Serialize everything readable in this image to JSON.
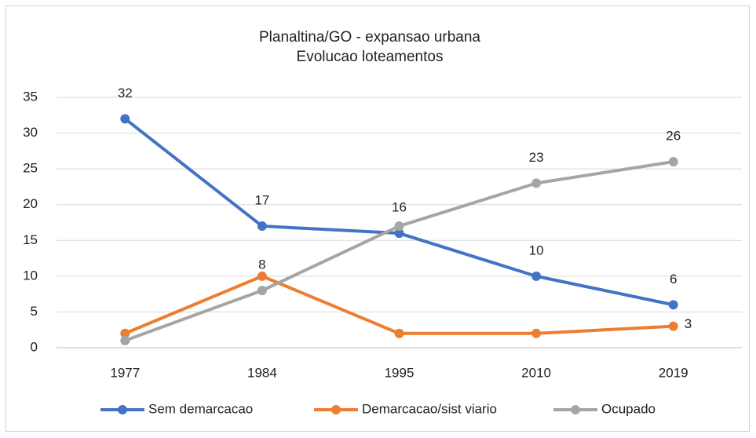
{
  "chart_data": {
    "type": "line",
    "title": "Planaltina/GO - expansao urbana",
    "subtitle": "Evolucao loteamentos",
    "categories": [
      "1977",
      "1984",
      "1995",
      "2010",
      "2019"
    ],
    "series": [
      {
        "name": "Sem demarcacao",
        "color": "#4472c4",
        "values": [
          32,
          17,
          16,
          10,
          6
        ],
        "value_labels": [
          "32",
          "17",
          "16",
          "10",
          "6"
        ]
      },
      {
        "name": "Demarcacao/sist viario",
        "color": "#ed7d31",
        "values": [
          2,
          10,
          2,
          2,
          3
        ],
        "value_labels": [
          null,
          null,
          null,
          null,
          "3"
        ]
      },
      {
        "name": "Ocupado",
        "color": "#a5a5a5",
        "values": [
          1,
          8,
          17,
          23,
          26
        ],
        "value_labels": [
          null,
          "8",
          null,
          "23",
          "26"
        ]
      }
    ],
    "ylim": [
      0,
      35
    ],
    "yticks": [
      0,
      5,
      10,
      15,
      20,
      25,
      30,
      35
    ],
    "grid": true,
    "legend": "bottom"
  }
}
